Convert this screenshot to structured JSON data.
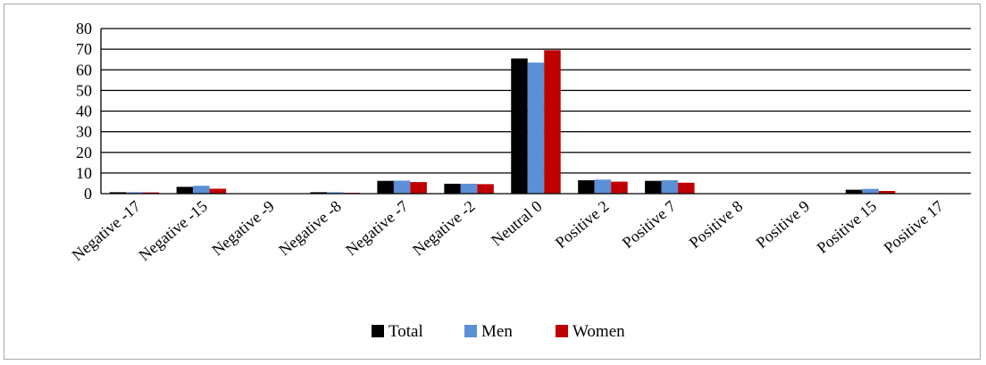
{
  "chart_data": {
    "type": "bar",
    "title": "",
    "xlabel": "",
    "ylabel": "",
    "ylim": [
      0,
      80
    ],
    "yticks": [
      0,
      10,
      20,
      30,
      40,
      50,
      60,
      70,
      80
    ],
    "grid": true,
    "legend_position": "bottom",
    "categories": [
      "Negative -17",
      "Negative -15",
      "Negative -9",
      "Negative -8",
      "Negative -7",
      "Negative -2",
      "Neutral 0",
      "Positive 2",
      "Positive 7",
      "Positive 8",
      "Positive 9",
      "Positive 15",
      "Positive 17"
    ],
    "series": [
      {
        "name": "Total",
        "color": "#000000",
        "values": [
          0.7,
          3.3,
          0.2,
          0.7,
          6.2,
          4.8,
          65.5,
          6.5,
          6.2,
          0.2,
          0.2,
          1.9,
          0.2
        ]
      },
      {
        "name": "Men",
        "color": "#5b8fd6",
        "values": [
          0.7,
          3.8,
          0.2,
          0.7,
          6.3,
          4.8,
          63.5,
          6.8,
          6.5,
          0.2,
          0.2,
          2.3,
          0.2
        ]
      },
      {
        "name": "Women",
        "color": "#c00000",
        "values": [
          0.6,
          2.4,
          0.2,
          0.4,
          5.6,
          4.6,
          69.5,
          5.8,
          5.3,
          0.2,
          0.2,
          1.3,
          0.2
        ]
      }
    ]
  }
}
